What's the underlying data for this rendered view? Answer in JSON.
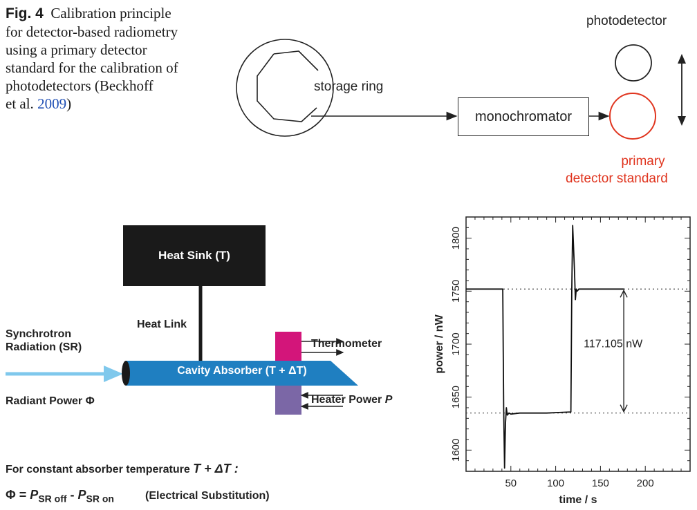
{
  "caption": {
    "fig_label": "Fig. 4",
    "line1": "Calibration principle",
    "line2": "for detector-based radiometry",
    "line3": "using a primary detector",
    "line4": "standard for the calibration of",
    "line5": "photodetectors (Beckhoff",
    "line6_pre": "et al. ",
    "ref_year": "2009",
    "line6_post": ")"
  },
  "top_diagram": {
    "storage_ring": "storage ring",
    "monochromator": "monochromator",
    "photodetector": "photodetector",
    "primary_line1": "primary",
    "primary_line2": "detector standard"
  },
  "absorber_diagram": {
    "heat_sink": "Heat Sink (T)",
    "heat_link": "Heat Link",
    "sr_line1": "Synchrotron",
    "sr_line2": "Radiation (SR)",
    "cavity": "Cavity Absorber (T + ΔT)",
    "thermometer": "Thermometer",
    "heater_power": "Heater Power ",
    "heater_symbol": "P",
    "radiant_power": "Radiant Power Φ",
    "constant_temp": "For constant absorber temperature ",
    "constant_temp_symbol": "T + ΔT :",
    "formula_lhs": "Φ = ",
    "p1": "P",
    "p1_sub": "SR off",
    "minus": " - ",
    "p2": "P",
    "p2_sub": "SR on",
    "formula_note": "(Electrical Substitution)",
    "colors": {
      "cavity": "#1f7fc1",
      "arrow": "#7fc8ec",
      "thermometer": "#d3157a",
      "heater": "#7b67a6"
    }
  },
  "chart_data": {
    "type": "line",
    "title": "",
    "xlabel": "time / s",
    "ylabel": "power / nW",
    "xlim": [
      0,
      250
    ],
    "ylim": [
      1580,
      1820
    ],
    "xticks": [
      50,
      100,
      150,
      200
    ],
    "yticks": [
      1600,
      1650,
      1700,
      1750,
      1800
    ],
    "reference_lines": [
      1752,
      1635
    ],
    "annotation": "117.105 nW",
    "series": [
      {
        "name": "power",
        "x": [
          0,
          41,
          42,
          43,
          44,
          45,
          46,
          48,
          50,
          60,
          90,
          117,
          118,
          119,
          121,
          122,
          123,
          124,
          126,
          130,
          176
        ],
        "y": [
          1752,
          1752,
          1640,
          1583,
          1625,
          1640,
          1633,
          1635,
          1634,
          1635,
          1635,
          1636,
          1750,
          1812,
          1770,
          1742,
          1752,
          1750,
          1752,
          1752,
          1752
        ]
      }
    ]
  }
}
